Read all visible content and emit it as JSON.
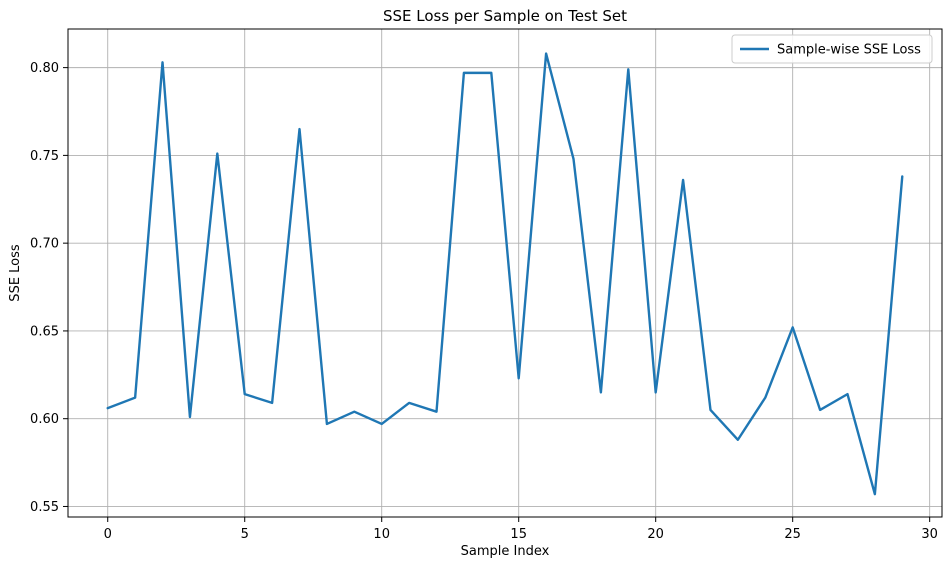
{
  "chart_data": {
    "type": "line",
    "title": "SSE Loss per Sample on Test Set",
    "xlabel": "Sample Index",
    "ylabel": "SSE Loss",
    "xlim": [
      -1.45,
      30.45
    ],
    "ylim": [
      0.544,
      0.822
    ],
    "xticks": [
      0,
      5,
      10,
      15,
      20,
      25,
      30
    ],
    "xtick_labels": [
      "0",
      "5",
      "10",
      "15",
      "20",
      "25",
      "30"
    ],
    "yticks": [
      0.55,
      0.6,
      0.65,
      0.7,
      0.75,
      0.8
    ],
    "ytick_labels": [
      "0.55",
      "0.60",
      "0.65",
      "0.70",
      "0.75",
      "0.80"
    ],
    "grid": true,
    "legend_position": "top-right",
    "series": [
      {
        "name": "Sample-wise SSE Loss",
        "color": "#1f77b4",
        "x": [
          0,
          1,
          2,
          3,
          4,
          5,
          6,
          7,
          8,
          9,
          10,
          11,
          12,
          13,
          14,
          15,
          16,
          17,
          18,
          19,
          20,
          21,
          22,
          23,
          24,
          25,
          26,
          27,
          28,
          29
        ],
        "values": [
          0.606,
          0.612,
          0.803,
          0.601,
          0.751,
          0.614,
          0.609,
          0.765,
          0.597,
          0.604,
          0.597,
          0.609,
          0.604,
          0.797,
          0.797,
          0.623,
          0.808,
          0.748,
          0.615,
          0.799,
          0.615,
          0.736,
          0.605,
          0.588,
          0.612,
          0.652,
          0.605,
          0.614,
          0.557,
          0.738
        ]
      }
    ]
  }
}
